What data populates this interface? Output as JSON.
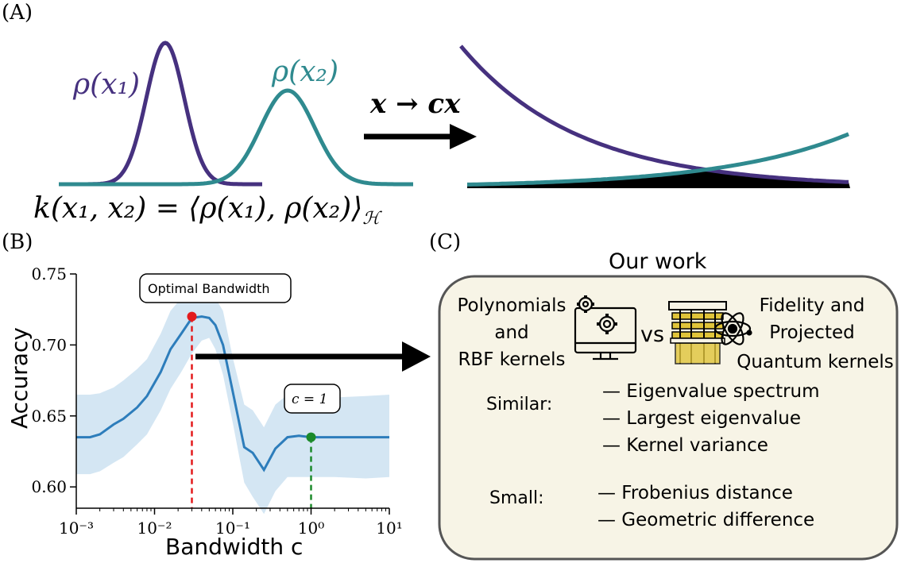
{
  "panel_a": {
    "label": "(A)",
    "rho_x1": "ρ(x₁)",
    "rho_x2": "ρ(x₂)",
    "map_label": "x → cx",
    "kernel_formula": "k(x₁, x₂) = ⟨ρ(x₁), ρ(x₂)⟩",
    "kernel_subscript": "ℋ",
    "colors": {
      "purple": "#46317f",
      "teal": "#2f8a8f",
      "arrow": "#000000"
    }
  },
  "panel_b": {
    "label": "(B)",
    "callout_optimal": "Optimal Bandwidth",
    "callout_c": "c = 1",
    "colors": {
      "line": "#2d7dbb",
      "band": "#cfe3f2",
      "optimal": "#e31a1c",
      "c1": "#1b8a2a"
    }
  },
  "panel_c": {
    "label": "(C)",
    "title": "Our work",
    "left_lines": [
      "Polynomials",
      "and",
      "RBF kernels"
    ],
    "vs": "vs",
    "right_lines": [
      "Fidelity  and",
      "Projected",
      "Quantum kernels"
    ],
    "similar_label": "Similar:",
    "similar_items": [
      "— Eigenvalue spectrum",
      "— Largest eigenvalue",
      "— Kernel variance"
    ],
    "small_label": "Small:",
    "small_items": [
      "— Frobenius distance",
      "— Geometric difference"
    ],
    "box_fill": "#f7f4e6",
    "icons": [
      "gears-monitor-icon",
      "quantum-computer-icon",
      "atom-icon"
    ]
  },
  "chart_data": {
    "type": "line",
    "xlabel": "Bandwidth c",
    "ylabel": "Accuracy",
    "xscale": "log",
    "xlim": [
      0.001,
      10
    ],
    "ylim": [
      0.585,
      0.75
    ],
    "xticks": [
      "10⁻³",
      "10⁻²",
      "10⁻¹",
      "10⁰",
      "10¹"
    ],
    "yticks": [
      "0.60",
      "0.65",
      "0.70",
      "0.75"
    ],
    "grid": false,
    "series": [
      {
        "x": [
          0.001,
          0.0015,
          0.002,
          0.003,
          0.004,
          0.006,
          0.008,
          0.012,
          0.016,
          0.022,
          0.03,
          0.04,
          0.05,
          0.06,
          0.075,
          0.1,
          0.14,
          0.18,
          0.25,
          0.35,
          0.5,
          0.7,
          1.0,
          2.0,
          5.0,
          10.0
        ],
        "y": [
          0.635,
          0.635,
          0.637,
          0.644,
          0.648,
          0.656,
          0.664,
          0.681,
          0.697,
          0.708,
          0.719,
          0.72,
          0.719,
          0.714,
          0.7,
          0.667,
          0.628,
          0.624,
          0.612,
          0.627,
          0.635,
          0.636,
          0.635,
          0.635,
          0.635,
          0.635
        ],
        "lower": [
          0.609,
          0.609,
          0.611,
          0.617,
          0.621,
          0.63,
          0.637,
          0.654,
          0.669,
          0.681,
          0.694,
          0.703,
          0.705,
          0.697,
          0.679,
          0.645,
          0.603,
          0.593,
          0.581,
          0.597,
          0.607,
          0.607,
          0.607,
          0.607,
          0.606,
          0.607
        ],
        "upper": [
          0.665,
          0.665,
          0.666,
          0.67,
          0.675,
          0.683,
          0.69,
          0.708,
          0.724,
          0.733,
          0.74,
          0.737,
          0.734,
          0.733,
          0.724,
          0.691,
          0.658,
          0.654,
          0.642,
          0.658,
          0.665,
          0.665,
          0.664,
          0.663,
          0.664,
          0.665
        ]
      }
    ],
    "annotations": [
      {
        "text": "Optimal Bandwidth",
        "x": 0.03,
        "y": 0.72
      },
      {
        "text": "c = 1",
        "x": 1.0,
        "y": 0.635
      }
    ]
  }
}
